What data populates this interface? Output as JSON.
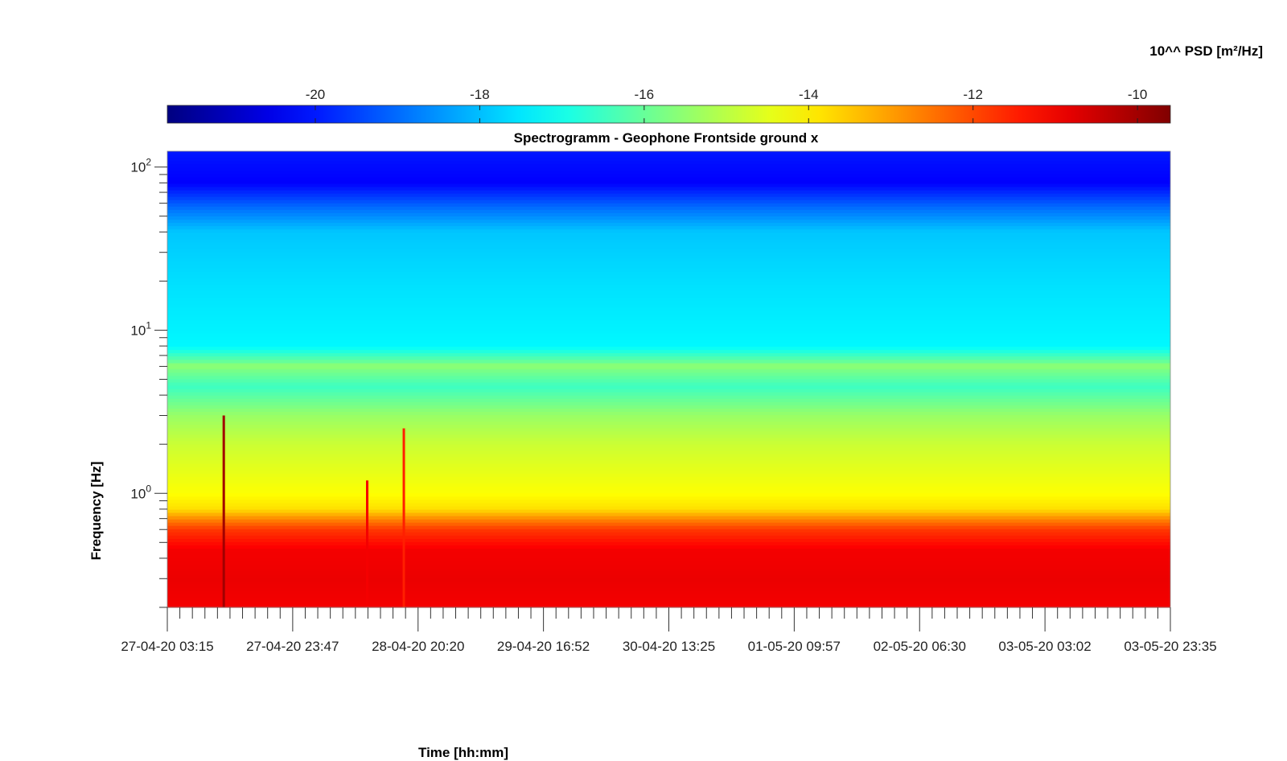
{
  "chart_data": {
    "type": "heatmap",
    "title": "Spectrogramm - Geophone Frontside ground x",
    "xlabel": "Time [hh:mm]",
    "ylabel": "Frequency [Hz]",
    "colorbar": {
      "label": "10^^ PSD [m²/Hz]",
      "range": [
        -21.8,
        -9.6
      ],
      "ticks": [
        -20,
        -18,
        -16,
        -14,
        -12,
        -10
      ],
      "tick_labels": [
        "-20",
        "-18",
        "-16",
        "-14",
        "-12",
        "-10"
      ],
      "colormap": "jet"
    },
    "x_axis": {
      "tick_labels": [
        "27-04-20 03:15",
        "27-04-20 23:47",
        "28-04-20 20:20",
        "29-04-20 16:52",
        "30-04-20 13:25",
        "01-05-20 09:57",
        "02-05-20 06:30",
        "03-05-20 03:02",
        "03-05-20 23:35"
      ],
      "range": [
        "27-04-20 03:15",
        "03-05-20 23:35"
      ]
    },
    "y_axis": {
      "scale": "log",
      "range": [
        0.2,
        125
      ],
      "ticks": [
        1,
        10,
        100
      ],
      "tick_labels": [
        {
          "base": "10",
          "exp": "0"
        },
        {
          "base": "10",
          "exp": "1"
        },
        {
          "base": "10",
          "exp": "2"
        }
      ]
    },
    "psd_profile": [
      {
        "f": 0.2,
        "psd": -11.0
      },
      {
        "f": 0.3,
        "psd": -10.9
      },
      {
        "f": 0.45,
        "psd": -11.0
      },
      {
        "f": 0.6,
        "psd": -11.8
      },
      {
        "f": 0.7,
        "psd": -12.8
      },
      {
        "f": 0.8,
        "psd": -13.8
      },
      {
        "f": 1.0,
        "psd": -14.2
      },
      {
        "f": 2.0,
        "psd": -14.8
      },
      {
        "f": 3.0,
        "psd": -15.4
      },
      {
        "f": 4.5,
        "psd": -16.5
      },
      {
        "f": 6.0,
        "psd": -15.6
      },
      {
        "f": 8.0,
        "psd": -17.3
      },
      {
        "f": 20.0,
        "psd": -17.6
      },
      {
        "f": 40.0,
        "psd": -17.9
      },
      {
        "f": 55.0,
        "psd": -18.9
      },
      {
        "f": 80.0,
        "psd": -20.3
      },
      {
        "f": 125.0,
        "psd": -20.0
      }
    ],
    "features": [
      {
        "kind": "tonal-line",
        "f": 6.0,
        "psd": -15.6
      },
      {
        "kind": "transient",
        "t": "27-04-20 12:30",
        "f_max": 3.0,
        "psd": -10.0
      },
      {
        "kind": "transient",
        "t": "28-04-20 12:00",
        "f_max": 1.2,
        "psd": -11.0
      },
      {
        "kind": "transient",
        "t": "28-04-20 18:00",
        "f_max": 2.5,
        "psd": -11.5
      }
    ]
  }
}
